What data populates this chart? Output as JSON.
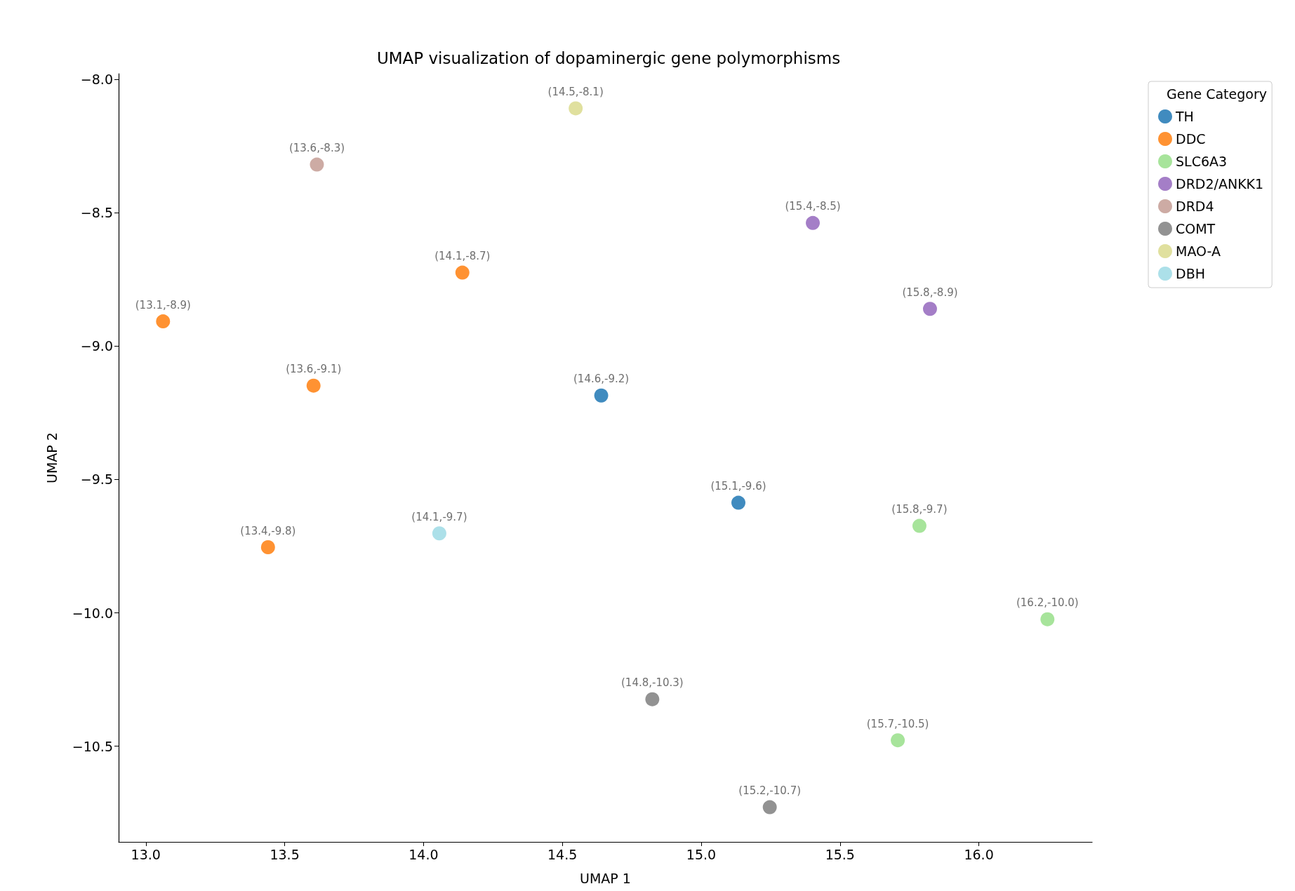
{
  "chart_data": {
    "type": "scatter",
    "title": "UMAP visualization of dopaminergic gene polymorphisms",
    "xlabel": "UMAP 1",
    "ylabel": "UMAP 2",
    "legend_title": "Gene Category",
    "xlim": [
      12.902,
      16.408
    ],
    "ylim": [
      -10.859,
      -7.978
    ],
    "xticks": [
      {
        "value": 13,
        "label": "13.0"
      },
      {
        "value": 13.5,
        "label": "13.5"
      },
      {
        "value": 14,
        "label": "14.0"
      },
      {
        "value": 14.5,
        "label": "14.5"
      },
      {
        "value": 15,
        "label": "15.0"
      },
      {
        "value": 15.5,
        "label": "15.5"
      },
      {
        "value": 16,
        "label": "16.0"
      }
    ],
    "yticks": [
      {
        "value": -8,
        "label": "−8.0"
      },
      {
        "value": -8.5,
        "label": "−8.5"
      },
      {
        "value": -9,
        "label": "−9.0"
      },
      {
        "value": -9.5,
        "label": "−9.5"
      },
      {
        "value": -10,
        "label": "−10.0"
      },
      {
        "value": -10.5,
        "label": "−10.5"
      }
    ],
    "grid": false,
    "legend": "top right",
    "marker": "circle",
    "series": [
      {
        "name": "TH",
        "color": "#1f77b4",
        "x": [
          14.64,
          15.134
        ],
        "values": [
          -9.185,
          -9.587
        ],
        "value_labels": [
          "(14.6,-9.2)",
          "(15.1,-9.6)"
        ]
      },
      {
        "name": "DDC",
        "color": "#ff7f0e",
        "x": [
          13.062,
          14.14,
          13.604,
          13.44
        ],
        "values": [
          -8.907,
          -8.724,
          -9.148,
          -9.754
        ],
        "value_labels": [
          "(13.1,-8.9)",
          "(14.1,-8.7)",
          "(13.6,-9.1)",
          "(13.4,-9.8)"
        ]
      },
      {
        "name": "SLC6A3",
        "color": "#98df8a",
        "x": [
          15.786,
          16.247,
          15.708
        ],
        "values": [
          -9.674,
          -10.024,
          -10.478
        ],
        "value_labels": [
          "(15.8,-9.7)",
          "(16.2,-10.0)",
          "(15.7,-10.5)"
        ]
      },
      {
        "name": "DRD2/ANKK1",
        "color": "#9467bd",
        "x": [
          15.402,
          15.824
        ],
        "values": [
          -8.538,
          -8.86
        ],
        "value_labels": [
          "(15.4,-8.5)",
          "(15.8,-8.9)"
        ]
      },
      {
        "name": "DRD4",
        "color": "#c49c94",
        "x": [
          13.616
        ],
        "values": [
          -8.319
        ],
        "value_labels": [
          "(13.6,-8.3)"
        ]
      },
      {
        "name": "COMT",
        "color": "#7f7f7f",
        "x": [
          14.824,
          15.247
        ],
        "values": [
          -10.324,
          -10.729
        ],
        "value_labels": [
          "(14.8,-10.3)",
          "(15.2,-10.7)"
        ]
      },
      {
        "name": "MAO-A",
        "color": "#dbdb8d",
        "x": [
          14.548
        ],
        "values": [
          -8.108
        ],
        "value_labels": [
          "(14.5,-8.1)"
        ]
      },
      {
        "name": "DBH",
        "color": "#9edae5",
        "x": [
          14.057
        ],
        "values": [
          -9.702
        ],
        "value_labels": [
          "(14.1,-9.7)"
        ]
      }
    ]
  }
}
